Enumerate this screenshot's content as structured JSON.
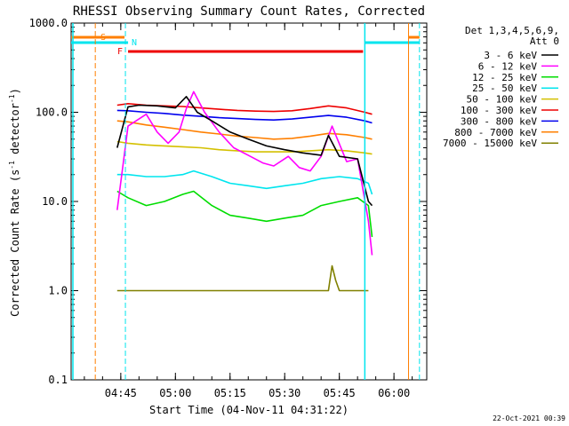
{
  "chart_data": {
    "type": "line",
    "title": "RHESSI Observing Summary Count Rates, Corrected",
    "xlabel": "Start Time (04-Nov-11 04:31:22)",
    "ylabel": "Corrected Count Rate (s",
    "ylabel_sup": "-1",
    "ylabel_mid": " detector",
    "ylabel_end": ")",
    "y_scale": "log",
    "ylim": [
      0.1,
      1000
    ],
    "xlim": [
      "04:31:22",
      "06:09:00"
    ],
    "y_ticks": [
      "0.1",
      "1.0",
      "10.0",
      "100.0",
      "1000.0"
    ],
    "x_ticks": [
      "04:45",
      "05:00",
      "05:15",
      "05:30",
      "05:45",
      "06:00"
    ],
    "legend_header": [
      "Det 1,3,4,5,6,9,",
      "Att 0"
    ],
    "legend_placement": "right",
    "footer_date": "22-Oct-2021 00:39",
    "flags": [
      {
        "label": "S",
        "color": "#ff7f00"
      },
      {
        "label": "N",
        "color": "#00e5ee"
      },
      {
        "label": "F",
        "color": "#ee0000"
      }
    ],
    "series": [
      {
        "name": "3 - 6 keV",
        "color": "#000000",
        "x": [
          "04:44",
          "04:47",
          "04:50",
          "04:55",
          "05:00",
          "05:03",
          "05:06",
          "05:10",
          "05:15",
          "05:20",
          "05:25",
          "05:30",
          "05:35",
          "05:40",
          "05:42",
          "05:45",
          "05:50",
          "05:53",
          "05:54"
        ],
        "values": [
          40,
          115,
          120,
          118,
          112,
          150,
          100,
          80,
          60,
          50,
          42,
          38,
          35,
          33,
          55,
          32,
          30,
          10,
          9
        ]
      },
      {
        "name": "6 - 12 keV",
        "color": "#ff00ff",
        "x": [
          "04:44",
          "04:47",
          "04:52",
          "04:55",
          "04:58",
          "05:01",
          "05:03",
          "05:05",
          "05:08",
          "05:12",
          "05:16",
          "05:20",
          "05:24",
          "05:27",
          "05:31",
          "05:34",
          "05:37",
          "05:40",
          "05:43",
          "05:47",
          "05:50",
          "05:53",
          "05:54"
        ],
        "values": [
          8,
          70,
          95,
          60,
          45,
          60,
          110,
          170,
          100,
          60,
          40,
          33,
          27,
          25,
          32,
          24,
          22,
          32,
          70,
          28,
          30,
          6,
          2.5
        ]
      },
      {
        "name": "12 - 25 keV",
        "color": "#00dd00",
        "x": [
          "04:44",
          "04:47",
          "04:52",
          "04:57",
          "05:02",
          "05:05",
          "05:10",
          "05:15",
          "05:20",
          "05:25",
          "05:30",
          "05:35",
          "05:40",
          "05:45",
          "05:50",
          "05:53",
          "05:54"
        ],
        "values": [
          13,
          11,
          9,
          10,
          12,
          13,
          9,
          7,
          6.5,
          6,
          6.5,
          7,
          9,
          10,
          11,
          9,
          4
        ]
      },
      {
        "name": "25 - 50 keV",
        "color": "#00e5ee",
        "x": [
          "04:44",
          "04:47",
          "04:52",
          "04:57",
          "05:02",
          "05:05",
          "05:10",
          "05:15",
          "05:20",
          "05:25",
          "05:30",
          "05:35",
          "05:40",
          "05:45",
          "05:50",
          "05:53",
          "05:54"
        ],
        "values": [
          20,
          20,
          19,
          19,
          20,
          22,
          19,
          16,
          15,
          14,
          15,
          16,
          18,
          19,
          18,
          16,
          12
        ]
      },
      {
        "name": "50 - 100 keV",
        "color": "#d4c000",
        "x": [
          "04:44",
          "04:47",
          "04:52",
          "04:57",
          "05:02",
          "05:07",
          "05:12",
          "05:17",
          "05:22",
          "05:27",
          "05:32",
          "05:37",
          "05:42",
          "05:47",
          "05:52",
          "05:54"
        ],
        "values": [
          47,
          45,
          43,
          42,
          41,
          40,
          38,
          37,
          36,
          36,
          36,
          37,
          38,
          37,
          35,
          34
        ]
      },
      {
        "name": "100 - 300 keV",
        "color": "#ee0000",
        "x": [
          "04:44",
          "04:47",
          "04:52",
          "04:57",
          "05:02",
          "05:07",
          "05:12",
          "05:17",
          "05:22",
          "05:27",
          "05:32",
          "05:37",
          "05:42",
          "05:47",
          "05:52",
          "05:54"
        ],
        "values": [
          120,
          125,
          120,
          118,
          116,
          112,
          108,
          105,
          103,
          102,
          104,
          110,
          118,
          112,
          100,
          95
        ]
      },
      {
        "name": "300 - 800 keV",
        "color": "#0000ee",
        "x": [
          "04:44",
          "04:47",
          "04:52",
          "04:57",
          "05:02",
          "05:07",
          "05:12",
          "05:17",
          "05:22",
          "05:27",
          "05:32",
          "05:37",
          "05:42",
          "05:47",
          "05:52",
          "05:54"
        ],
        "values": [
          105,
          104,
          100,
          97,
          93,
          90,
          87,
          85,
          83,
          82,
          84,
          88,
          92,
          88,
          80,
          76
        ]
      },
      {
        "name": "800 - 7000 keV",
        "color": "#ff7f00",
        "x": [
          "04:44",
          "04:47",
          "04:52",
          "04:57",
          "05:02",
          "05:07",
          "05:12",
          "05:17",
          "05:22",
          "05:27",
          "05:32",
          "05:37",
          "05:42",
          "05:47",
          "05:52",
          "05:54"
        ],
        "values": [
          80,
          78,
          72,
          68,
          64,
          60,
          57,
          54,
          52,
          50,
          51,
          54,
          58,
          56,
          52,
          50
        ]
      },
      {
        "name": "7000 - 15000 keV",
        "color": "#808000",
        "x": [
          "04:44",
          "05:00",
          "05:01",
          "05:13",
          "05:33",
          "05:42",
          "05:43",
          "05:44",
          "05:45",
          "05:50",
          "05:51",
          "05:53"
        ],
        "values": [
          1.0,
          1.0,
          1.0,
          1.0,
          1.0,
          1.0,
          1.9,
          1.3,
          1.0,
          1.0,
          1.0,
          1.0
        ]
      }
    ]
  }
}
